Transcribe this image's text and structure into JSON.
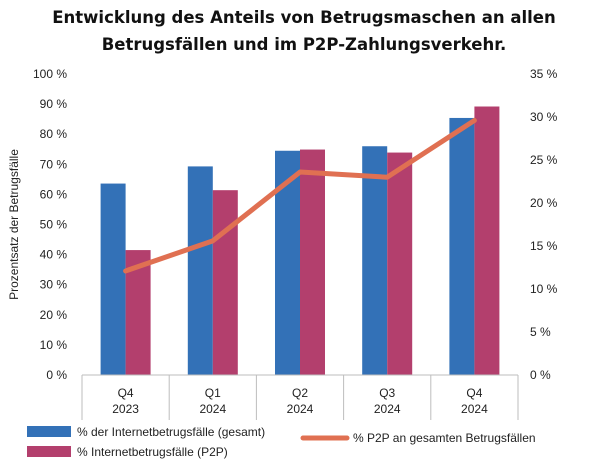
{
  "chart_data": {
    "type": "bar+line",
    "title_lines": [
      "Entwicklung des Anteils von Betrugsmaschen an allen",
      "Betrugsfällen und im P2P-Zahlungsverkehr."
    ],
    "categories": [
      [
        "Q4",
        "2023"
      ],
      [
        "Q1",
        "2024"
      ],
      [
        "Q2",
        "2024"
      ],
      [
        "Q3",
        "2024"
      ],
      [
        "Q4",
        "2024"
      ]
    ],
    "ylabel": "Prozentsatz der Betrugsfälle",
    "y_left": {
      "min": 0,
      "max": 100,
      "step": 10,
      "ticks": [
        "0 %",
        "10 %",
        "20 %",
        "30 %",
        "40 %",
        "50 %",
        "60 %",
        "70 %",
        "80 %",
        "90 %",
        "100 %"
      ]
    },
    "y_right": {
      "min": 0,
      "max": 35,
      "step": 5,
      "ticks": [
        "0 %",
        "5 %",
        "10 %",
        "15 %",
        "20 %",
        "25 %",
        "30 %",
        "35 %"
      ]
    },
    "series": [
      {
        "name": "% der Internetbetrugsfälle (gesamt)",
        "kind": "bar",
        "axis": "left",
        "color": "#3371b7",
        "values": [
          63.6,
          69.3,
          74.5,
          76.0,
          85.4
        ]
      },
      {
        "name": "% Internetbetrugsfälle (P2P)",
        "kind": "bar",
        "axis": "left",
        "color": "#b33f6d",
        "values": [
          41.5,
          61.4,
          74.9,
          73.9,
          89.2
        ]
      },
      {
        "name": "% P2P an gesamten Betrugsfällen",
        "kind": "line",
        "axis": "right",
        "color": "#e07052",
        "values": [
          12.1,
          15.6,
          23.6,
          23.0,
          29.6
        ]
      }
    ],
    "legend_position": "bottom",
    "grid": false
  }
}
